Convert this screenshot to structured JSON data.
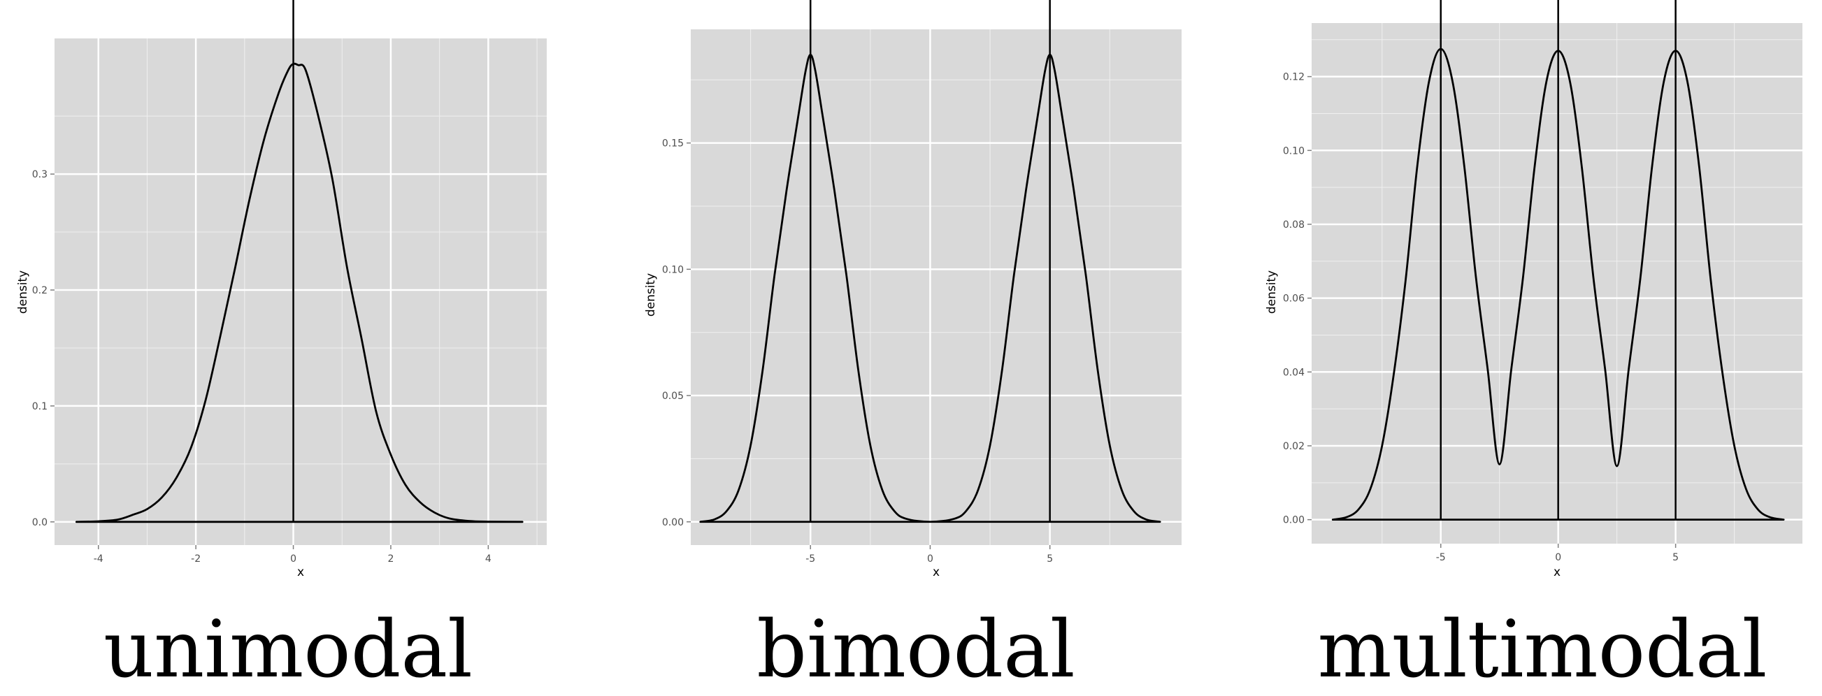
{
  "chart_data": [
    {
      "type": "line",
      "caption": "unimodal",
      "xlabel": "x",
      "ylabel": "density",
      "xlim": [
        -4.9,
        5.2
      ],
      "ylim": [
        -0.02,
        0.417
      ],
      "x_ticks": [
        -4,
        -2,
        0,
        2,
        4
      ],
      "x_tick_labels": [
        "-4",
        "-2",
        "0",
        "2",
        "4"
      ],
      "y_ticks": [
        0.0,
        0.1,
        0.2,
        0.3
      ],
      "y_tick_labels": [
        "0.0",
        "0.1",
        "0.2",
        "0.3"
      ],
      "vlines": [
        0
      ],
      "grid": true,
      "colors": {
        "panel": "#d9d9d9",
        "grid_major": "#ffffff",
        "line": "#000000"
      },
      "series": [
        {
          "x": [
            -4.45,
            -4.0,
            -3.6,
            -3.3,
            -3.0,
            -2.7,
            -2.4,
            -2.1,
            -1.8,
            -1.5,
            -1.2,
            -0.9,
            -0.6,
            -0.3,
            -0.1,
            0.0,
            0.1,
            0.25,
            0.5,
            0.8,
            1.1,
            1.4,
            1.7,
            2.0,
            2.3,
            2.6,
            2.9,
            3.2,
            3.6,
            4.0,
            4.7
          ],
          "y": [
            0.0,
            0.0005,
            0.002,
            0.006,
            0.011,
            0.021,
            0.038,
            0.064,
            0.105,
            0.16,
            0.218,
            0.278,
            0.33,
            0.37,
            0.39,
            0.395,
            0.394,
            0.39,
            0.352,
            0.296,
            0.22,
            0.158,
            0.095,
            0.058,
            0.032,
            0.017,
            0.008,
            0.003,
            0.0008,
            0.0002,
            0.0
          ]
        }
      ]
    },
    {
      "type": "line",
      "caption": "bimodal",
      "xlabel": "x",
      "ylabel": "density",
      "xlim": [
        -10.0,
        10.5
      ],
      "ylim": [
        -0.0092,
        0.195
      ],
      "x_ticks": [
        -5,
        0,
        5
      ],
      "x_tick_labels": [
        "-5",
        "0",
        "5"
      ],
      "y_ticks": [
        0.0,
        0.05,
        0.1,
        0.15
      ],
      "y_tick_labels": [
        "0.00",
        "0.05",
        "0.10",
        "0.15"
      ],
      "vlines": [
        -5,
        5
      ],
      "grid": true,
      "colors": {
        "panel": "#d9d9d9",
        "grid_major": "#ffffff",
        "line": "#000000"
      },
      "series": [
        {
          "x": [
            -9.6,
            -9.0,
            -8.5,
            -8.0,
            -7.5,
            -7.0,
            -6.5,
            -6.0,
            -5.5,
            -5.2,
            -5.0,
            -4.8,
            -4.5,
            -4.0,
            -3.5,
            -3.0,
            -2.5,
            -2.0,
            -1.5,
            -1.0,
            0.0,
            1.0,
            1.5,
            2.0,
            2.5,
            3.0,
            3.5,
            4.0,
            4.5,
            4.8,
            5.0,
            5.2,
            5.5,
            6.0,
            6.5,
            7.0,
            7.5,
            8.0,
            8.5,
            9.0,
            9.6
          ],
          "y": [
            0.0,
            0.001,
            0.0043,
            0.0126,
            0.0303,
            0.0599,
            0.0978,
            0.1312,
            0.1612,
            0.1787,
            0.185,
            0.1787,
            0.1612,
            0.1312,
            0.0978,
            0.0599,
            0.0303,
            0.0126,
            0.0043,
            0.0012,
            0.0,
            0.0012,
            0.0043,
            0.0126,
            0.0303,
            0.0599,
            0.0978,
            0.1312,
            0.1612,
            0.1787,
            0.185,
            0.1787,
            0.1612,
            0.1312,
            0.0978,
            0.0599,
            0.0303,
            0.0126,
            0.0043,
            0.001,
            0.0
          ]
        }
      ]
    },
    {
      "type": "line",
      "caption": "multimodal",
      "xlabel": "x",
      "ylabel": "density",
      "xlim": [
        -10.5,
        10.4
      ],
      "ylim": [
        -0.0065,
        0.1345
      ],
      "x_ticks": [
        -5,
        0,
        5
      ],
      "x_tick_labels": [
        "-5",
        "0",
        "5"
      ],
      "y_ticks": [
        0.0,
        0.02,
        0.04,
        0.06,
        0.08,
        0.1,
        0.12
      ],
      "y_tick_labels": [
        "0.00",
        "0.02",
        "0.04",
        "0.06",
        "0.08",
        "0.10",
        "0.12"
      ],
      "vlines": [
        -5,
        0,
        5
      ],
      "grid": true,
      "colors": {
        "panel": "#d9d9d9",
        "grid_major": "#ffffff",
        "line": "#000000"
      },
      "series": [
        {
          "x": [
            -9.6,
            -9.0,
            -8.5,
            -8.0,
            -7.5,
            -7.0,
            -6.5,
            -6.0,
            -5.5,
            -5.0,
            -4.5,
            -4.0,
            -3.5,
            -3.0,
            -2.5,
            -2.0,
            -1.5,
            -1.0,
            -0.5,
            0.0,
            0.5,
            1.0,
            1.5,
            2.0,
            2.5,
            3.0,
            3.5,
            4.0,
            4.5,
            5.0,
            5.5,
            6.0,
            6.5,
            7.0,
            7.5,
            8.0,
            8.5,
            9.0,
            9.6
          ],
          "y": [
            0.0,
            0.0007,
            0.0028,
            0.0083,
            0.02,
            0.0395,
            0.0647,
            0.0958,
            0.1187,
            0.1275,
            0.1187,
            0.0958,
            0.0655,
            0.0406,
            0.015,
            0.0406,
            0.0655,
            0.0958,
            0.1187,
            0.127,
            0.1187,
            0.0958,
            0.0655,
            0.0406,
            0.0145,
            0.0406,
            0.0655,
            0.0958,
            0.1187,
            0.127,
            0.1187,
            0.0958,
            0.0647,
            0.0395,
            0.02,
            0.0083,
            0.0028,
            0.0007,
            0.0
          ]
        }
      ]
    }
  ]
}
